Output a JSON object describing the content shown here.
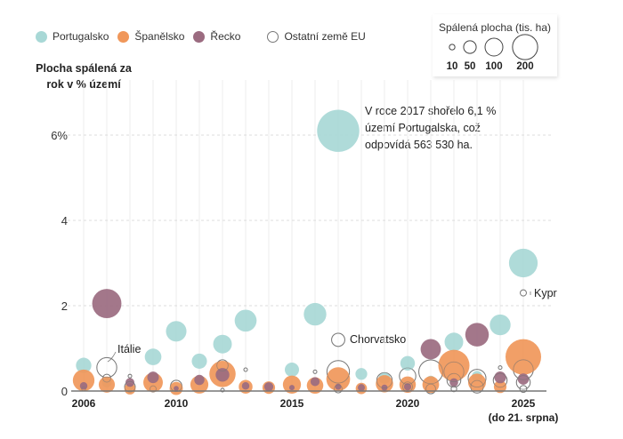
{
  "chart_data": {
    "type": "scatter",
    "subtype": "bubble",
    "title": "",
    "ylabel": "Plocha spálená za rok v % území",
    "xlabel": "",
    "x_range": [
      2006,
      2025
    ],
    "ylim": [
      0,
      6.6
    ],
    "y_ticks": [
      {
        "value": 0,
        "label": "0"
      },
      {
        "value": 2,
        "label": "2"
      },
      {
        "value": 4,
        "label": "4"
      },
      {
        "value": 6,
        "label": "6%"
      }
    ],
    "x_ticks": [
      {
        "value": 2006,
        "label": "2006"
      },
      {
        "value": 2010,
        "label": "2010"
      },
      {
        "value": 2015,
        "label": "2015"
      },
      {
        "value": 2020,
        "label": "2020"
      },
      {
        "value": 2025,
        "label": "2025",
        "sublabel": "(do 21. srpna)"
      }
    ],
    "grid": "vertical lines per year, dashed horizontal at y ticks",
    "size_legend": {
      "title": "Spálená plocha (tis. ha)",
      "values": [
        10,
        50,
        100,
        200
      ],
      "labels": [
        "10",
        "50",
        "100",
        "200"
      ]
    },
    "series": [
      {
        "name": "Portugalsko",
        "color": "#a8d8d6",
        "style": "filled",
        "points": [
          {
            "x": 2006,
            "y": 0.6,
            "size": 75
          },
          {
            "x": 2007,
            "y": 0.2,
            "size": 31
          },
          {
            "x": 2008,
            "y": 0.1,
            "size": 17
          },
          {
            "x": 2009,
            "y": 0.8,
            "size": 87
          },
          {
            "x": 2010,
            "y": 1.4,
            "size": 133
          },
          {
            "x": 2011,
            "y": 0.7,
            "size": 73
          },
          {
            "x": 2012,
            "y": 1.1,
            "size": 110
          },
          {
            "x": 2013,
            "y": 1.65,
            "size": 152
          },
          {
            "x": 2014,
            "y": 0.1,
            "size": 20
          },
          {
            "x": 2015,
            "y": 0.5,
            "size": 64
          },
          {
            "x": 2016,
            "y": 1.8,
            "size": 161
          },
          {
            "x": 2017,
            "y": 6.1,
            "size": 563
          },
          {
            "x": 2018,
            "y": 0.4,
            "size": 44
          },
          {
            "x": 2019,
            "y": 0.3,
            "size": 42
          },
          {
            "x": 2020,
            "y": 0.65,
            "size": 67
          },
          {
            "x": 2021,
            "y": 0.25,
            "size": 28
          },
          {
            "x": 2022,
            "y": 1.15,
            "size": 110
          },
          {
            "x": 2023,
            "y": 0.35,
            "size": 34
          },
          {
            "x": 2024,
            "y": 1.55,
            "size": 137
          },
          {
            "x": 2025,
            "y": 3.0,
            "size": 260
          }
        ]
      },
      {
        "name": "Španělsko",
        "color": "#f0975a",
        "style": "filled",
        "points": [
          {
            "x": 2006,
            "y": 0.25,
            "size": 148
          },
          {
            "x": 2007,
            "y": 0.15,
            "size": 82
          },
          {
            "x": 2008,
            "y": 0.05,
            "size": 40
          },
          {
            "x": 2009,
            "y": 0.2,
            "size": 120
          },
          {
            "x": 2010,
            "y": 0.06,
            "size": 55
          },
          {
            "x": 2011,
            "y": 0.15,
            "size": 102
          },
          {
            "x": 2012,
            "y": 0.4,
            "size": 218
          },
          {
            "x": 2013,
            "y": 0.1,
            "size": 60
          },
          {
            "x": 2014,
            "y": 0.08,
            "size": 50
          },
          {
            "x": 2015,
            "y": 0.15,
            "size": 103
          },
          {
            "x": 2016,
            "y": 0.13,
            "size": 86
          },
          {
            "x": 2017,
            "y": 0.28,
            "size": 178
          },
          {
            "x": 2018,
            "y": 0.06,
            "size": 40
          },
          {
            "x": 2019,
            "y": 0.17,
            "size": 95
          },
          {
            "x": 2020,
            "y": 0.15,
            "size": 85
          },
          {
            "x": 2021,
            "y": 0.15,
            "size": 88
          },
          {
            "x": 2022,
            "y": 0.6,
            "size": 307
          },
          {
            "x": 2023,
            "y": 0.2,
            "size": 100
          },
          {
            "x": 2024,
            "y": 0.1,
            "size": 50
          },
          {
            "x": 2025,
            "y": 0.8,
            "size": 400
          }
        ]
      },
      {
        "name": "Řecko",
        "color": "#9b6b80",
        "style": "filled",
        "points": [
          {
            "x": 2006,
            "y": 0.12,
            "size": 18
          },
          {
            "x": 2007,
            "y": 2.05,
            "size": 270
          },
          {
            "x": 2008,
            "y": 0.2,
            "size": 25
          },
          {
            "x": 2009,
            "y": 0.32,
            "size": 42
          },
          {
            "x": 2010,
            "y": 0.06,
            "size": 8
          },
          {
            "x": 2011,
            "y": 0.26,
            "size": 33
          },
          {
            "x": 2012,
            "y": 0.38,
            "size": 59
          },
          {
            "x": 2013,
            "y": 0.12,
            "size": 18
          },
          {
            "x": 2014,
            "y": 0.1,
            "size": 26
          },
          {
            "x": 2015,
            "y": 0.08,
            "size": 9
          },
          {
            "x": 2016,
            "y": 0.22,
            "size": 26
          },
          {
            "x": 2017,
            "y": 0.1,
            "size": 12
          },
          {
            "x": 2018,
            "y": 0.08,
            "size": 16
          },
          {
            "x": 2019,
            "y": 0.08,
            "size": 12
          },
          {
            "x": 2020,
            "y": 0.1,
            "size": 17
          },
          {
            "x": 2021,
            "y": 0.98,
            "size": 130
          },
          {
            "x": 2022,
            "y": 0.2,
            "size": 23
          },
          {
            "x": 2023,
            "y": 1.32,
            "size": 175
          },
          {
            "x": 2024,
            "y": 0.32,
            "size": 44
          },
          {
            "x": 2025,
            "y": 0.28,
            "size": 40
          }
        ]
      },
      {
        "name": "Ostatní země EU",
        "color": "#ffffff",
        "stroke": "#777777",
        "style": "outline",
        "points": [
          {
            "x": 2006,
            "y": 0.05,
            "size": 5
          },
          {
            "x": 2007,
            "y": 0.55,
            "size": 125,
            "label": "Itálie"
          },
          {
            "x": 2007,
            "y": 0.3,
            "size": 20
          },
          {
            "x": 2008,
            "y": 0.35,
            "size": 4
          },
          {
            "x": 2008,
            "y": 0.1,
            "size": 35
          },
          {
            "x": 2009,
            "y": 0.05,
            "size": 12
          },
          {
            "x": 2010,
            "y": 0.12,
            "size": 40
          },
          {
            "x": 2012,
            "y": 0.6,
            "size": 40
          },
          {
            "x": 2012,
            "y": 0.02,
            "size": 4
          },
          {
            "x": 2013,
            "y": 0.5,
            "size": 4
          },
          {
            "x": 2016,
            "y": 0.45,
            "size": 4
          },
          {
            "x": 2017,
            "y": 1.2,
            "size": 55,
            "label": "Chorvatsko"
          },
          {
            "x": 2017,
            "y": 0.45,
            "size": 160
          },
          {
            "x": 2017,
            "y": 0.05,
            "size": 20
          },
          {
            "x": 2019,
            "y": 0.25,
            "size": 75
          },
          {
            "x": 2020,
            "y": 0.35,
            "size": 85
          },
          {
            "x": 2020,
            "y": 0.1,
            "size": 30
          },
          {
            "x": 2021,
            "y": 0.45,
            "size": 180
          },
          {
            "x": 2021,
            "y": 0.05,
            "size": 30
          },
          {
            "x": 2022,
            "y": 0.45,
            "size": 125
          },
          {
            "x": 2022,
            "y": 0.25,
            "size": 60
          },
          {
            "x": 2022,
            "y": 0.05,
            "size": 10
          },
          {
            "x": 2023,
            "y": 0.3,
            "size": 100
          },
          {
            "x": 2023,
            "y": 0.1,
            "size": 50
          },
          {
            "x": 2024,
            "y": 0.55,
            "size": 4
          },
          {
            "x": 2024,
            "y": 0.25,
            "size": 60
          },
          {
            "x": 2025,
            "y": 2.3,
            "size": 12,
            "label": "Kypr"
          },
          {
            "x": 2025,
            "y": 0.5,
            "size": 125
          },
          {
            "x": 2025,
            "y": 0.2,
            "size": 60
          },
          {
            "x": 2025,
            "y": 0.05,
            "size": 15
          }
        ]
      }
    ],
    "annotations": [
      {
        "x": 2017,
        "y": 6.1,
        "text_lines": [
          "V roce 2017 shořelo 6,1 %",
          "území Portugalska, což",
          "odpovídá 563 530 ha."
        ]
      }
    ]
  },
  "legend": [
    {
      "label": "Portugalsko",
      "color": "#a8d8d6",
      "style": "filled"
    },
    {
      "label": "Španělsko",
      "color": "#f0975a",
      "style": "filled"
    },
    {
      "label": "Řecko",
      "color": "#9b6b80",
      "style": "filled"
    },
    {
      "label": "Ostatní země EU",
      "color": "#ffffff",
      "style": "outline"
    }
  ],
  "ylabel_lines": [
    "Plocha spálená za",
    "rok v % území"
  ],
  "annotation_lines": [
    "V roce 2017 shořelo 6,1 %",
    "území Portugalska, což",
    "odpovídá 563 530 ha."
  ],
  "labels": {
    "italy": "Itálie",
    "croatia": "Chorvatsko",
    "cyprus": "Kypr"
  }
}
